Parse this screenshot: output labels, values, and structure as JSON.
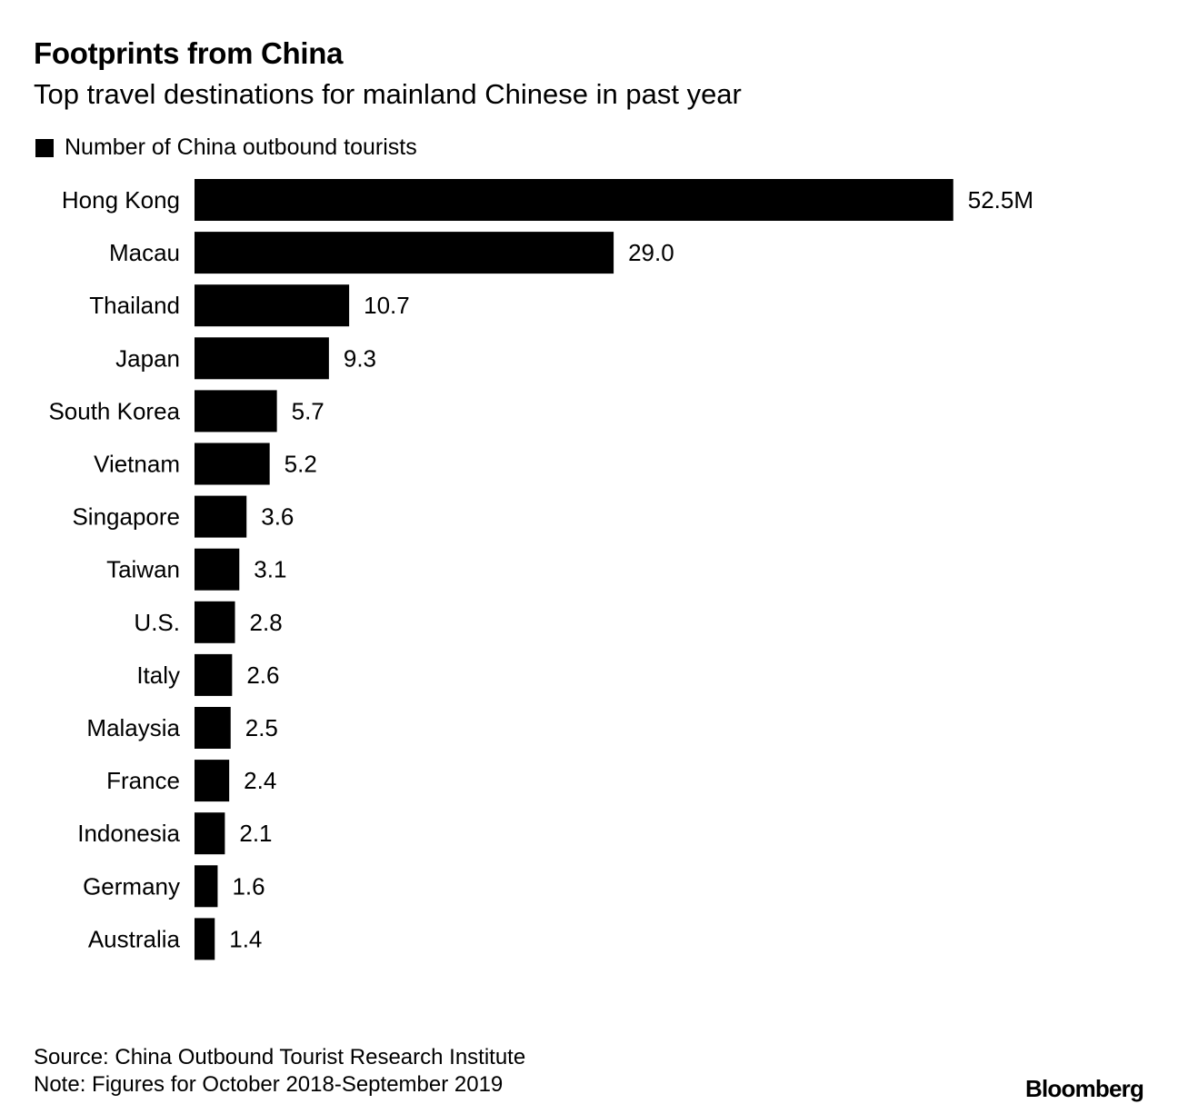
{
  "title": "Footprints from China",
  "subtitle": "Top travel destinations for mainland Chinese in past year",
  "legend": {
    "label": "Number of China outbound tourists",
    "color": "#000000"
  },
  "chart_data": {
    "type": "bar",
    "orientation": "horizontal",
    "categories": [
      "Hong Kong",
      "Macau",
      "Thailand",
      "Japan",
      "South Korea",
      "Vietnam",
      "Singapore",
      "Taiwan",
      "U.S.",
      "Italy",
      "Malaysia",
      "France",
      "Indonesia",
      "Germany",
      "Australia"
    ],
    "series": [
      {
        "name": "Number of China outbound tourists",
        "values": [
          52.5,
          29.0,
          10.7,
          9.3,
          5.7,
          5.2,
          3.6,
          3.1,
          2.8,
          2.6,
          2.5,
          2.4,
          2.1,
          1.6,
          1.4
        ]
      }
    ],
    "value_labels": [
      "52.5M",
      "29.0",
      "10.7",
      "9.3",
      "5.7",
      "5.2",
      "3.6",
      "3.1",
      "2.8",
      "2.6",
      "2.5",
      "2.4",
      "2.1",
      "1.6",
      "1.4"
    ],
    "bar_color": "#000000",
    "grid": false
  },
  "footer": {
    "source": "Source: China Outbound Tourist Research Institute",
    "note": "Note: Figures for October 2018-September 2019"
  },
  "brand": "Bloomberg"
}
